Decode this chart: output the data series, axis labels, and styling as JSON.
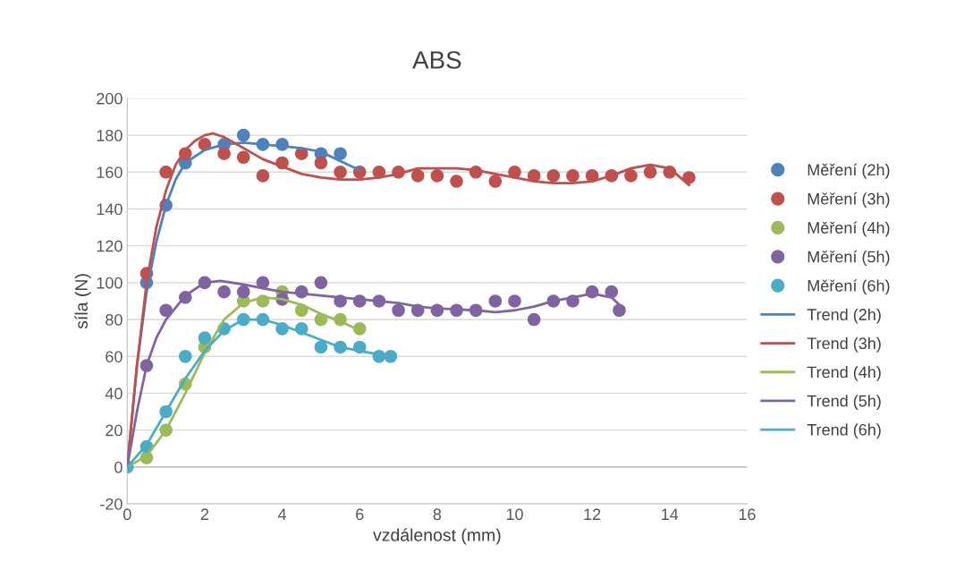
{
  "chart_data": {
    "type": "scatter",
    "title": "ABS",
    "xlabel": "vzdálenost (mm)",
    "ylabel": "síla (N)",
    "xlim": [
      0,
      16
    ],
    "xticks": [
      0,
      2,
      4,
      6,
      8,
      10,
      12,
      14,
      16
    ],
    "ylim": [
      -20,
      200
    ],
    "yticks": [
      -20,
      0,
      20,
      40,
      60,
      80,
      100,
      120,
      140,
      160,
      180,
      200
    ],
    "grid": "y",
    "legend": "right",
    "series": [
      {
        "name": "Měření (2h)",
        "marker": "circle",
        "color": "#4f81bd",
        "x": [
          0.5,
          1,
          1.5,
          2.5,
          3,
          3.5,
          4,
          5,
          5.5
        ],
        "values": [
          100,
          142,
          165,
          175,
          180,
          175,
          175,
          170,
          170
        ]
      },
      {
        "name": "Měření (3h)",
        "marker": "circle",
        "color": "#c0504d",
        "x": [
          0.5,
          1,
          1.5,
          2,
          2.5,
          3,
          3.5,
          4,
          4.5,
          5,
          5.5,
          6,
          6.5,
          7,
          7.5,
          8,
          8.5,
          9,
          9.5,
          10,
          10.5,
          11,
          11.5,
          12,
          12.5,
          13,
          13.5,
          14,
          14.5
        ],
        "values": [
          105,
          160,
          170,
          175,
          170,
          168,
          158,
          165,
          170,
          165,
          160,
          160,
          160,
          160,
          158,
          158,
          155,
          160,
          155,
          160,
          158,
          158,
          158,
          158,
          158,
          158,
          160,
          160,
          157
        ]
      },
      {
        "name": "Měření (4h)",
        "marker": "circle",
        "color": "#9bbb59",
        "x": [
          0.5,
          1,
          1.5,
          2,
          3,
          3.5,
          4,
          4.5,
          5,
          5.5,
          6
        ],
        "values": [
          5,
          20,
          45,
          65,
          90,
          90,
          95,
          85,
          80,
          80,
          75
        ]
      },
      {
        "name": "Měření (5h)",
        "marker": "circle",
        "color": "#8064a2",
        "x": [
          0.5,
          1,
          1.5,
          2,
          2.5,
          3,
          3.5,
          4,
          4.5,
          5,
          5.5,
          6,
          6.5,
          7,
          7.5,
          8,
          8.5,
          9,
          9.5,
          10,
          10.5,
          11,
          11.5,
          12,
          12.5,
          12.7
        ],
        "values": [
          55,
          85,
          92,
          100,
          95,
          95,
          100,
          91,
          95,
          100,
          90,
          90,
          90,
          85,
          85,
          85,
          85,
          85,
          90,
          90,
          80,
          90,
          90,
          95,
          95,
          85
        ]
      },
      {
        "name": "Měření (6h)",
        "marker": "circle",
        "color": "#4bacc6",
        "x": [
          0,
          0.5,
          1,
          1.5,
          2,
          2.5,
          3,
          3.5,
          4,
          4.5,
          5,
          5.5,
          6,
          6.5,
          6.8
        ],
        "values": [
          0,
          11,
          30,
          60,
          70,
          75,
          80,
          80,
          75,
          75,
          65,
          65,
          65,
          60,
          60
        ]
      },
      {
        "name": "Trend (2h)",
        "type": "line",
        "marker": "none",
        "color": "#4f81bd",
        "x": [
          0,
          0.25,
          0.5,
          0.75,
          1,
          1.25,
          1.5,
          2,
          2.5,
          3,
          3.5,
          4,
          4.5,
          5,
          5.5,
          6
        ],
        "values": [
          0,
          55,
          95,
          122,
          142,
          156,
          165,
          172,
          175,
          176,
          175,
          174,
          173,
          171,
          166,
          161
        ]
      },
      {
        "name": "Trend (3h)",
        "type": "line",
        "marker": "none",
        "color": "#c0504d",
        "x": [
          0,
          0.25,
          0.5,
          0.75,
          1,
          1.25,
          1.5,
          1.75,
          2,
          2.2,
          2.5,
          3,
          3.5,
          4,
          4.5,
          5,
          5.5,
          6,
          6.5,
          7,
          7.5,
          8,
          8.5,
          9,
          9.5,
          10,
          10.5,
          11,
          11.5,
          12,
          12.5,
          13,
          13.5,
          14,
          14.5
        ],
        "values": [
          0,
          55,
          100,
          130,
          150,
          164,
          172,
          177,
          180,
          181,
          179,
          173,
          167,
          163,
          159,
          157,
          156,
          156,
          157,
          159,
          162,
          162,
          162,
          161,
          159,
          157,
          155,
          154,
          154,
          155,
          158,
          162,
          164,
          162,
          153
        ]
      },
      {
        "name": "Trend (4h)",
        "type": "line",
        "marker": "none",
        "color": "#9bbb59",
        "x": [
          0,
          0.5,
          1,
          1.5,
          2,
          2.5,
          3,
          3.5,
          4,
          4.5,
          5,
          5.5,
          6
        ],
        "values": [
          0,
          6,
          20,
          40,
          62,
          80,
          89,
          92,
          91,
          88,
          83,
          79,
          74
        ]
      },
      {
        "name": "Trend (5h)",
        "type": "line",
        "marker": "none",
        "color": "#8064a2",
        "x": [
          0,
          0.25,
          0.5,
          0.75,
          1,
          1.5,
          2,
          2.4,
          3,
          3.5,
          4,
          4.5,
          5.5,
          6,
          7,
          7.5,
          8,
          9,
          9.5,
          10,
          10.5,
          11,
          11.5,
          12,
          12.5,
          12.7
        ],
        "values": [
          0,
          30,
          55,
          70,
          80,
          93,
          100,
          101,
          99,
          97,
          95,
          94,
          92,
          91,
          89,
          87,
          86,
          85,
          84,
          85,
          87,
          90,
          92,
          94,
          92,
          88
        ]
      },
      {
        "name": "Trend (6h)",
        "type": "line",
        "marker": "none",
        "color": "#4bacc6",
        "x": [
          0,
          0.5,
          1,
          1.5,
          2,
          2.5,
          3,
          3.5,
          4,
          4.5,
          5,
          5.5,
          6,
          6.5,
          6.8
        ],
        "values": [
          0,
          12,
          30,
          48,
          63,
          74,
          80,
          80,
          77,
          73,
          69,
          65,
          63,
          61,
          60
        ]
      }
    ]
  }
}
